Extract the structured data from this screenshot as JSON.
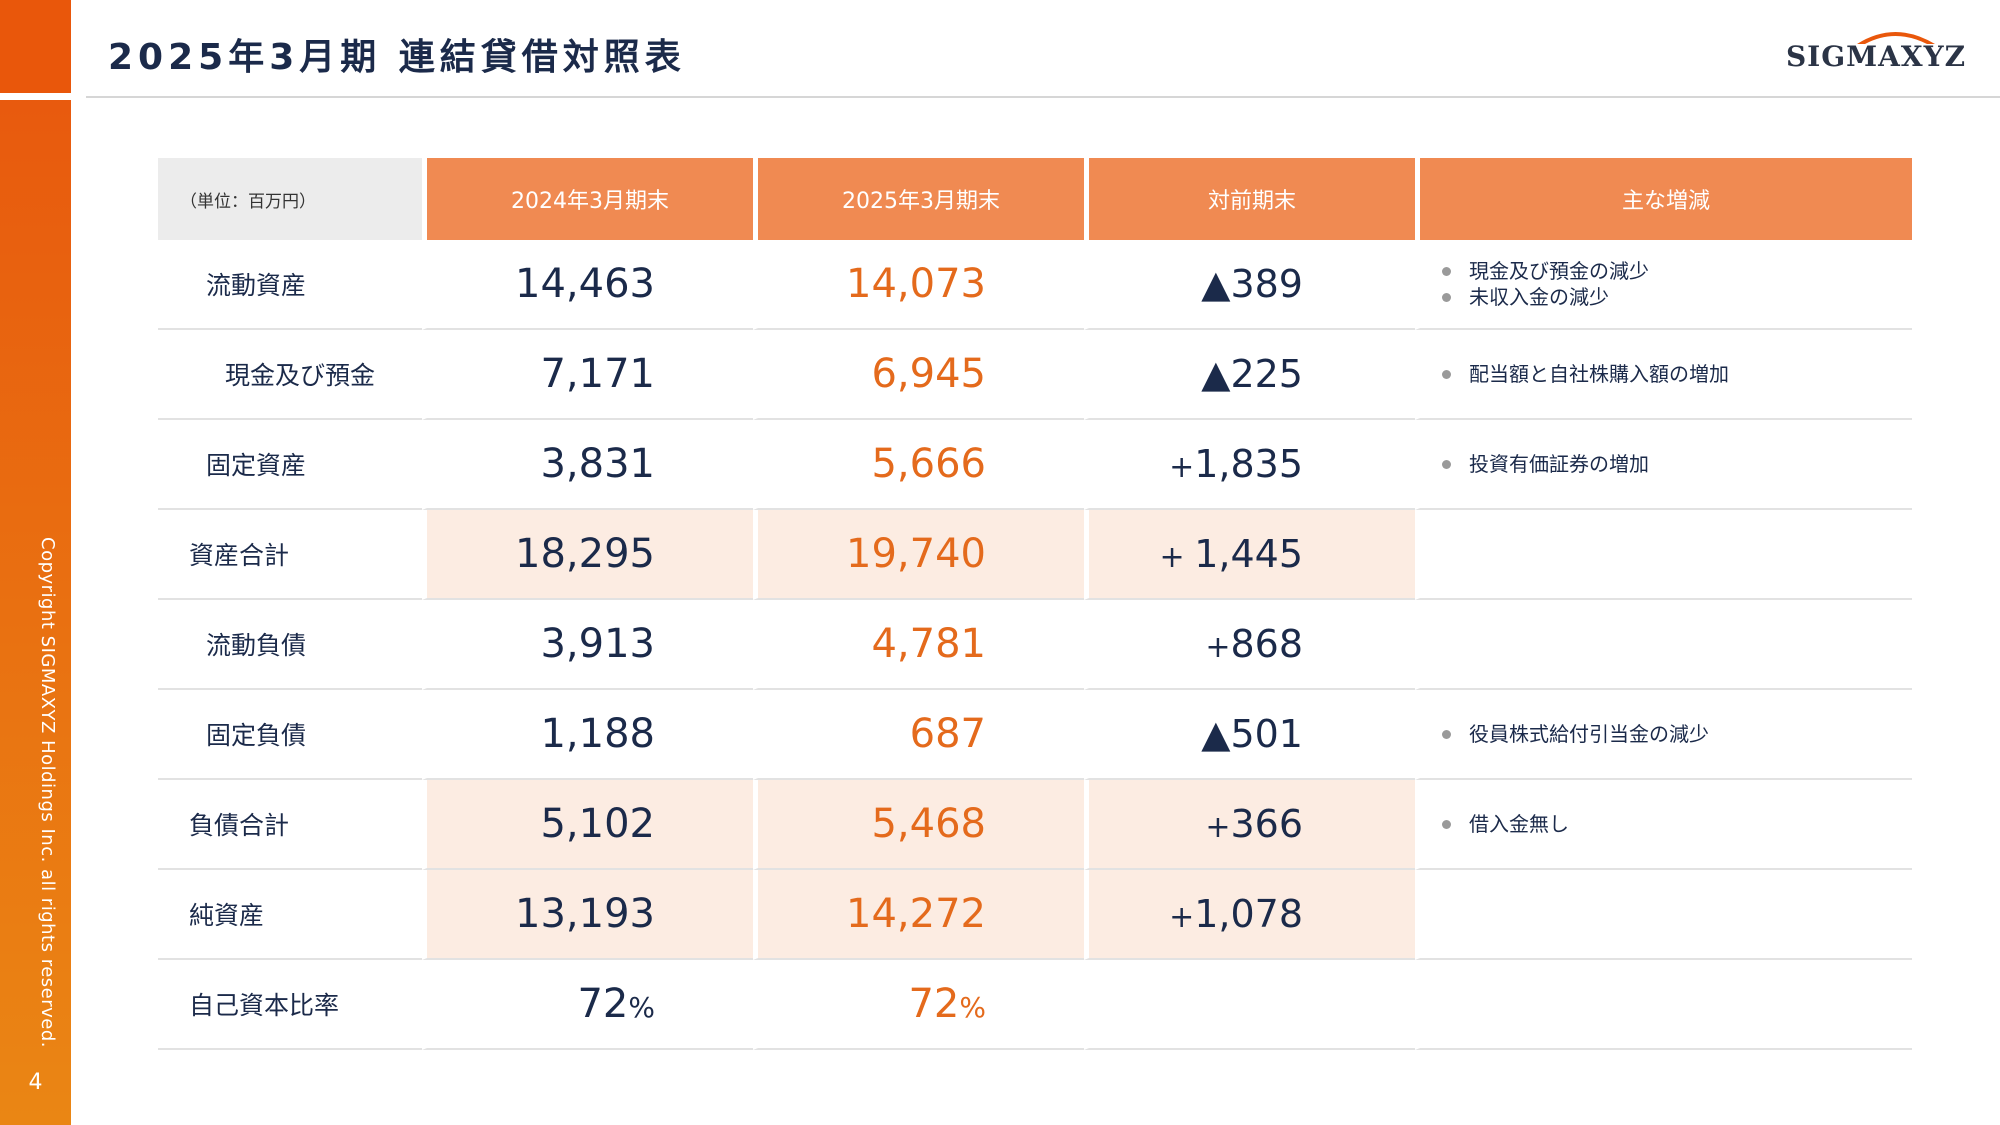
{
  "title": "2025年3月期 連結貸借対照表",
  "logo": "SIGMAXYZ",
  "copyright": "Copyright SIGMAXYZ Holdings Inc. all rights reserved.",
  "page_number": "4",
  "colors": {
    "accent": "#e9570b",
    "header": "#f08a52",
    "shade": "#fcece2",
    "current": "#e46a1c",
    "navy": "#1b2a4a"
  },
  "table": {
    "headers": [
      "（単位：百万円）",
      "2024年3月期末",
      "2025年3月期末",
      "対前期末",
      "主な増減"
    ],
    "rows": [
      {
        "label": "流動資産",
        "prev": "14,463",
        "cur": "14,073",
        "diff": "▲389",
        "notes": [
          "現金及び預金の減少",
          "未収入金の減少"
        ]
      },
      {
        "label": "現金及び預金",
        "prev": "7,171",
        "cur": "6,945",
        "diff": "▲225",
        "notes": [
          "配当額と自社株購入額の増加"
        ]
      },
      {
        "label": "固定資産",
        "prev": "3,831",
        "cur": "5,666",
        "diff_sign": "+",
        "diff_value": "1,835",
        "notes": [
          "投資有価証券の増加"
        ]
      },
      {
        "label": "資産合計",
        "prev": "18,295",
        "cur": "19,740",
        "diff_sign": "+ ",
        "diff_value": "1,445",
        "notes": []
      },
      {
        "label": "流動負債",
        "prev": "3,913",
        "cur": "4,781",
        "diff_sign": "+",
        "diff_value": "868",
        "notes": []
      },
      {
        "label": "固定負債",
        "prev": "1,188",
        "cur": "687",
        "diff": "▲501",
        "notes": [
          "役員株式給付引当金の減少"
        ]
      },
      {
        "label": "負債合計",
        "prev": "5,102",
        "cur": "5,468",
        "diff_sign": "+",
        "diff_value": "366",
        "notes": [
          "借入金無し"
        ]
      },
      {
        "label": "純資産",
        "prev": "13,193",
        "cur": "14,272",
        "diff_sign": "+",
        "diff_value": "1,078",
        "notes": []
      },
      {
        "label": "自己資本比率",
        "prev": "72",
        "prev_unit": "%",
        "cur": "72",
        "cur_unit": "%",
        "notes": []
      }
    ]
  }
}
